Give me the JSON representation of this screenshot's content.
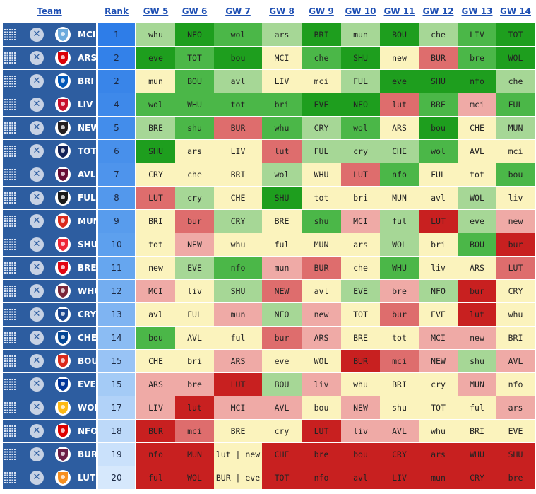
{
  "headers": {
    "team": "Team",
    "rank": "Rank",
    "gws": [
      "GW 5",
      "GW 6",
      "GW 7",
      "GW 8",
      "GW 9",
      "GW 10",
      "GW 11",
      "GW 12",
      "GW 13",
      "GW 14"
    ]
  },
  "colors": {
    "team_cell": "#2d5da0",
    "d1": "#1e9e1e",
    "d2": "#4bb748",
    "d3": "#a6d796",
    "d4": "#fbf3bd",
    "d5": "#efaaa6",
    "d6": "#de6d6d",
    "d7": "#c82020"
  },
  "teams": [
    {
      "abbr": "MCI",
      "rank": "1",
      "badge": "man-city-badge-icon",
      "fixtures": [
        {
          "t": "whu",
          "d": 3
        },
        {
          "t": "NFO",
          "d": 1
        },
        {
          "t": "wol",
          "d": 2
        },
        {
          "t": "ars",
          "d": 3
        },
        {
          "t": "BRI",
          "d": 1
        },
        {
          "t": "mun",
          "d": 3
        },
        {
          "t": "BOU",
          "d": 1
        },
        {
          "t": "che",
          "d": 3
        },
        {
          "t": "LIV",
          "d": 2
        },
        {
          "t": "TOT",
          "d": 1
        }
      ]
    },
    {
      "abbr": "ARS",
      "rank": "2",
      "badge": "arsenal-badge-icon",
      "fixtures": [
        {
          "t": "eve",
          "d": 1
        },
        {
          "t": "TOT",
          "d": 2
        },
        {
          "t": "bou",
          "d": 1
        },
        {
          "t": "MCI",
          "d": 4
        },
        {
          "t": "che",
          "d": 2
        },
        {
          "t": "SHU",
          "d": 1
        },
        {
          "t": "new",
          "d": 4
        },
        {
          "t": "BUR",
          "d": 6
        },
        {
          "t": "bre",
          "d": 2
        },
        {
          "t": "WOL",
          "d": 1
        }
      ]
    },
    {
      "abbr": "BRI",
      "rank": "2",
      "badge": "brighton-badge-icon",
      "fixtures": [
        {
          "t": "mun",
          "d": 4
        },
        {
          "t": "BOU",
          "d": 2
        },
        {
          "t": "avl",
          "d": 3
        },
        {
          "t": "LIV",
          "d": 4
        },
        {
          "t": "mci",
          "d": 4
        },
        {
          "t": "FUL",
          "d": 3
        },
        {
          "t": "eve",
          "d": 1
        },
        {
          "t": "SHU",
          "d": 1
        },
        {
          "t": "nfo",
          "d": 1
        },
        {
          "t": "che",
          "d": 3
        }
      ]
    },
    {
      "abbr": "LIV",
      "rank": "4",
      "badge": "liverpool-badge-icon",
      "fixtures": [
        {
          "t": "wol",
          "d": 2
        },
        {
          "t": "WHU",
          "d": 2
        },
        {
          "t": "tot",
          "d": 2
        },
        {
          "t": "bri",
          "d": 2
        },
        {
          "t": "EVE",
          "d": 1
        },
        {
          "t": "NFO",
          "d": 1
        },
        {
          "t": "lut",
          "d": 6
        },
        {
          "t": "BRE",
          "d": 2
        },
        {
          "t": "mci",
          "d": 5
        },
        {
          "t": "FUL",
          "d": 2
        }
      ]
    },
    {
      "abbr": "NEW",
      "rank": "5",
      "badge": "newcastle-badge-icon",
      "fixtures": [
        {
          "t": "BRE",
          "d": 3
        },
        {
          "t": "shu",
          "d": 2
        },
        {
          "t": "BUR",
          "d": 6
        },
        {
          "t": "whu",
          "d": 2
        },
        {
          "t": "CRY",
          "d": 3
        },
        {
          "t": "wol",
          "d": 2
        },
        {
          "t": "ARS",
          "d": 4
        },
        {
          "t": "bou",
          "d": 1
        },
        {
          "t": "CHE",
          "d": 4
        },
        {
          "t": "MUN",
          "d": 3
        }
      ]
    },
    {
      "abbr": "TOT",
      "rank": "6",
      "badge": "tottenham-badge-icon",
      "fixtures": [
        {
          "t": "SHU",
          "d": 1
        },
        {
          "t": "ars",
          "d": 4
        },
        {
          "t": "LIV",
          "d": 4
        },
        {
          "t": "lut",
          "d": 6
        },
        {
          "t": "FUL",
          "d": 3
        },
        {
          "t": "cry",
          "d": 3
        },
        {
          "t": "CHE",
          "d": 3
        },
        {
          "t": "wol",
          "d": 2
        },
        {
          "t": "AVL",
          "d": 4
        },
        {
          "t": "mci",
          "d": 4
        }
      ]
    },
    {
      "abbr": "AVL",
      "rank": "7",
      "badge": "aston-villa-badge-icon",
      "fixtures": [
        {
          "t": "CRY",
          "d": 4
        },
        {
          "t": "che",
          "d": 4
        },
        {
          "t": "BRI",
          "d": 4
        },
        {
          "t": "wol",
          "d": 3
        },
        {
          "t": "WHU",
          "d": 4
        },
        {
          "t": "LUT",
          "d": 6
        },
        {
          "t": "nfo",
          "d": 2
        },
        {
          "t": "FUL",
          "d": 4
        },
        {
          "t": "tot",
          "d": 4
        },
        {
          "t": "bou",
          "d": 2
        }
      ]
    },
    {
      "abbr": "FUL",
      "rank": "8",
      "badge": "fulham-badge-icon",
      "fixtures": [
        {
          "t": "LUT",
          "d": 6
        },
        {
          "t": "cry",
          "d": 3
        },
        {
          "t": "CHE",
          "d": 4
        },
        {
          "t": "SHU",
          "d": 1
        },
        {
          "t": "tot",
          "d": 4
        },
        {
          "t": "bri",
          "d": 4
        },
        {
          "t": "MUN",
          "d": 4
        },
        {
          "t": "avl",
          "d": 4
        },
        {
          "t": "WOL",
          "d": 3
        },
        {
          "t": "liv",
          "d": 4
        }
      ]
    },
    {
      "abbr": "MUN",
      "rank": "9",
      "badge": "man-utd-badge-icon",
      "fixtures": [
        {
          "t": "BRI",
          "d": 4
        },
        {
          "t": "bur",
          "d": 6
        },
        {
          "t": "CRY",
          "d": 3
        },
        {
          "t": "BRE",
          "d": 4
        },
        {
          "t": "shu",
          "d": 2
        },
        {
          "t": "MCI",
          "d": 5
        },
        {
          "t": "ful",
          "d": 3
        },
        {
          "t": "LUT",
          "d": 7
        },
        {
          "t": "eve",
          "d": 3
        },
        {
          "t": "new",
          "d": 5
        }
      ]
    },
    {
      "abbr": "SHU",
      "rank": "10",
      "badge": "sheffield-badge-icon",
      "fixtures": [
        {
          "t": "tot",
          "d": 4
        },
        {
          "t": "NEW",
          "d": 5
        },
        {
          "t": "whu",
          "d": 4
        },
        {
          "t": "ful",
          "d": 4
        },
        {
          "t": "MUN",
          "d": 4
        },
        {
          "t": "ars",
          "d": 4
        },
        {
          "t": "WOL",
          "d": 3
        },
        {
          "t": "bri",
          "d": 4
        },
        {
          "t": "BOU",
          "d": 2
        },
        {
          "t": "bur",
          "d": 7
        }
      ]
    },
    {
      "abbr": "BRE",
      "rank": "11",
      "badge": "brentford-badge-icon",
      "fixtures": [
        {
          "t": "new",
          "d": 4
        },
        {
          "t": "EVE",
          "d": 3
        },
        {
          "t": "nfo",
          "d": 2
        },
        {
          "t": "mun",
          "d": 5
        },
        {
          "t": "BUR",
          "d": 6
        },
        {
          "t": "che",
          "d": 4
        },
        {
          "t": "WHU",
          "d": 2
        },
        {
          "t": "liv",
          "d": 4
        },
        {
          "t": "ARS",
          "d": 4
        },
        {
          "t": "LUT",
          "d": 6
        }
      ]
    },
    {
      "abbr": "WHU",
      "rank": "12",
      "badge": "west-ham-badge-icon",
      "fixtures": [
        {
          "t": "MCI",
          "d": 5
        },
        {
          "t": "liv",
          "d": 4
        },
        {
          "t": "SHU",
          "d": 3
        },
        {
          "t": "NEW",
          "d": 6
        },
        {
          "t": "avl",
          "d": 4
        },
        {
          "t": "EVE",
          "d": 3
        },
        {
          "t": "bre",
          "d": 5
        },
        {
          "t": "NFO",
          "d": 3
        },
        {
          "t": "bur",
          "d": 7
        },
        {
          "t": "CRY",
          "d": 4
        }
      ]
    },
    {
      "abbr": "CRY",
      "rank": "13",
      "badge": "crystal-palace-badge-icon",
      "fixtures": [
        {
          "t": "avl",
          "d": 4
        },
        {
          "t": "FUL",
          "d": 4
        },
        {
          "t": "mun",
          "d": 5
        },
        {
          "t": "NFO",
          "d": 3
        },
        {
          "t": "new",
          "d": 5
        },
        {
          "t": "TOT",
          "d": 4
        },
        {
          "t": "bur",
          "d": 6
        },
        {
          "t": "EVE",
          "d": 4
        },
        {
          "t": "lut",
          "d": 7
        },
        {
          "t": "whu",
          "d": 4
        }
      ]
    },
    {
      "abbr": "CHE",
      "rank": "14",
      "badge": "chelsea-badge-icon",
      "fixtures": [
        {
          "t": "bou",
          "d": 2
        },
        {
          "t": "AVL",
          "d": 4
        },
        {
          "t": "ful",
          "d": 4
        },
        {
          "t": "bur",
          "d": 6
        },
        {
          "t": "ARS",
          "d": 5
        },
        {
          "t": "BRE",
          "d": 4
        },
        {
          "t": "tot",
          "d": 4
        },
        {
          "t": "MCI",
          "d": 5
        },
        {
          "t": "new",
          "d": 5
        },
        {
          "t": "BRI",
          "d": 4
        }
      ]
    },
    {
      "abbr": "BOU",
      "rank": "15",
      "badge": "bournemouth-badge-icon",
      "fixtures": [
        {
          "t": "CHE",
          "d": 4
        },
        {
          "t": "bri",
          "d": 4
        },
        {
          "t": "ARS",
          "d": 5
        },
        {
          "t": "eve",
          "d": 4
        },
        {
          "t": "WOL",
          "d": 4
        },
        {
          "t": "BUR",
          "d": 7
        },
        {
          "t": "mci",
          "d": 6
        },
        {
          "t": "NEW",
          "d": 5
        },
        {
          "t": "shu",
          "d": 3
        },
        {
          "t": "AVL",
          "d": 5
        }
      ]
    },
    {
      "abbr": "EVE",
      "rank": "15",
      "badge": "everton-badge-icon",
      "fixtures": [
        {
          "t": "ARS",
          "d": 5
        },
        {
          "t": "bre",
          "d": 5
        },
        {
          "t": "LUT",
          "d": 7
        },
        {
          "t": "BOU",
          "d": 3
        },
        {
          "t": "liv",
          "d": 5
        },
        {
          "t": "whu",
          "d": 4
        },
        {
          "t": "BRI",
          "d": 4
        },
        {
          "t": "cry",
          "d": 4
        },
        {
          "t": "MUN",
          "d": 5
        },
        {
          "t": "nfo",
          "d": 4
        }
      ]
    },
    {
      "abbr": "WOL",
      "rank": "17",
      "badge": "wolves-badge-icon",
      "fixtures": [
        {
          "t": "LIV",
          "d": 5
        },
        {
          "t": "lut",
          "d": 7
        },
        {
          "t": "MCI",
          "d": 5
        },
        {
          "t": "AVL",
          "d": 5
        },
        {
          "t": "bou",
          "d": 4
        },
        {
          "t": "NEW",
          "d": 5
        },
        {
          "t": "shu",
          "d": 4
        },
        {
          "t": "TOT",
          "d": 4
        },
        {
          "t": "ful",
          "d": 4
        },
        {
          "t": "ars",
          "d": 5
        }
      ]
    },
    {
      "abbr": "NFO",
      "rank": "18",
      "badge": "forest-badge-icon",
      "fixtures": [
        {
          "t": "BUR",
          "d": 7
        },
        {
          "t": "mci",
          "d": 6
        },
        {
          "t": "BRE",
          "d": 4
        },
        {
          "t": "cry",
          "d": 4
        },
        {
          "t": "LUT",
          "d": 7
        },
        {
          "t": "liv",
          "d": 5
        },
        {
          "t": "AVL",
          "d": 5
        },
        {
          "t": "whu",
          "d": 4
        },
        {
          "t": "BRI",
          "d": 4
        },
        {
          "t": "EVE",
          "d": 4
        }
      ]
    },
    {
      "abbr": "BUR",
      "rank": "19",
      "badge": "burnley-badge-icon",
      "fixtures": [
        {
          "t": "nfo",
          "d": 7
        },
        {
          "t": "MUN",
          "d": 7
        },
        {
          "t": "lut | new",
          "d": 4
        },
        {
          "t": "CHE",
          "d": 7
        },
        {
          "t": "bre",
          "d": 7
        },
        {
          "t": "bou",
          "d": 7
        },
        {
          "t": "CRY",
          "d": 7
        },
        {
          "t": "ars",
          "d": 7
        },
        {
          "t": "WHU",
          "d": 7
        },
        {
          "t": "SHU",
          "d": 7
        }
      ]
    },
    {
      "abbr": "LUT",
      "rank": "20",
      "badge": "luton-badge-icon",
      "fixtures": [
        {
          "t": "ful",
          "d": 7
        },
        {
          "t": "WOL",
          "d": 7
        },
        {
          "t": "BUR | eve",
          "d": 4
        },
        {
          "t": "TOT",
          "d": 7
        },
        {
          "t": "nfo",
          "d": 7
        },
        {
          "t": "avl",
          "d": 7
        },
        {
          "t": "LIV",
          "d": 7
        },
        {
          "t": "mun",
          "d": 7
        },
        {
          "t": "CRY",
          "d": 7
        },
        {
          "t": "bre",
          "d": 7
        }
      ]
    }
  ]
}
